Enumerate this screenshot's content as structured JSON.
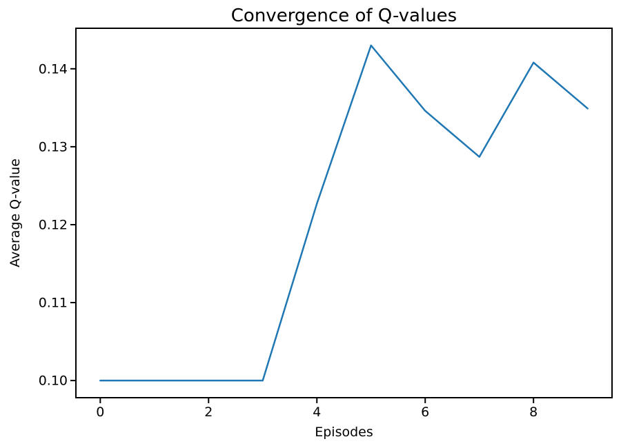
{
  "page": {
    "background_color": "#ffffff"
  },
  "chart_data": {
    "type": "line",
    "title": "Convergence of Q-values",
    "xlabel": "Episodes",
    "ylabel": "Average Q-value",
    "x": [
      0,
      1,
      2,
      3,
      4,
      5,
      6,
      7,
      8,
      9
    ],
    "series": [
      {
        "name": "Average Q-value",
        "color": "#1f77b4",
        "values": [
          0.1,
          0.1,
          0.1,
          0.1,
          0.1227,
          0.143,
          0.1346,
          0.1287,
          0.1408,
          0.1349
        ]
      }
    ],
    "xticks": [
      0,
      2,
      4,
      6,
      8
    ],
    "xtick_labels": [
      "0",
      "2",
      "4",
      "6",
      "8"
    ],
    "yticks": [
      0.1,
      0.11,
      0.12,
      0.13,
      0.14
    ],
    "ytick_labels": [
      "0.10",
      "0.11",
      "0.12",
      "0.13",
      "0.14"
    ],
    "xlim": [
      -0.45,
      9.45
    ],
    "ylim": [
      0.0978,
      0.1452
    ],
    "grid": false,
    "legend": null,
    "axis_color": "#000000",
    "text_color": "#000000",
    "line_width": 2.5,
    "spine_width": 2,
    "tick_length": 8
  }
}
